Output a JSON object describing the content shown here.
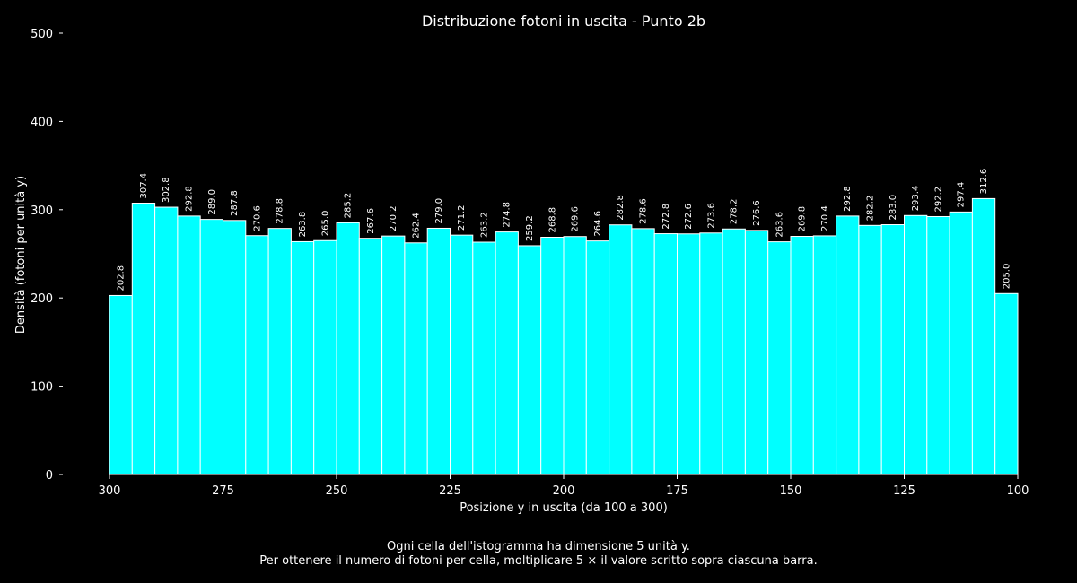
{
  "chart_data": {
    "type": "bar",
    "title": "Distribuzione fotoni in uscita - Punto 2b",
    "xlabel": "Posizione y in uscita (da 100 a 300)",
    "ylabel": "Densità (fotoni per unità y)",
    "xlim": [
      300,
      100
    ],
    "ylim": [
      0,
      500
    ],
    "x_ticks": [
      300,
      275,
      250,
      225,
      200,
      175,
      150,
      125,
      100
    ],
    "y_ticks": [
      0,
      100,
      200,
      300,
      400,
      500
    ],
    "bin_width": 5,
    "bin_left_edges": [
      300,
      295,
      290,
      285,
      280,
      275,
      270,
      265,
      260,
      255,
      250,
      245,
      240,
      235,
      230,
      225,
      220,
      215,
      210,
      205,
      200,
      195,
      190,
      185,
      180,
      175,
      170,
      165,
      160,
      155,
      150,
      145,
      140,
      135,
      130,
      125,
      120,
      115,
      110,
      105
    ],
    "values": [
      202.8,
      307.4,
      302.8,
      292.8,
      289.0,
      287.8,
      270.6,
      278.8,
      263.8,
      265.0,
      285.2,
      267.6,
      270.2,
      262.4,
      279.0,
      271.2,
      263.2,
      274.8,
      259.2,
      268.8,
      269.6,
      264.6,
      282.8,
      278.6,
      272.8,
      272.6,
      273.6,
      278.2,
      276.6,
      263.6,
      269.8,
      270.4,
      292.8,
      282.2,
      283.0,
      293.4,
      292.2,
      297.4,
      312.6,
      205.0
    ],
    "value_labels": [
      "202.8",
      "307.4",
      "302.8",
      "292.8",
      "289.0",
      "287.8",
      "270.6",
      "278.8",
      "263.8",
      "265.0",
      "285.2",
      "267.6",
      "270.2",
      "262.4",
      "279.0",
      "271.2",
      "263.2",
      "274.8",
      "259.2",
      "268.8",
      "269.6",
      "264.6",
      "282.8",
      "278.6",
      "272.8",
      "272.6",
      "273.6",
      "278.2",
      "276.6",
      "263.6",
      "269.8",
      "270.4",
      "292.8",
      "282.2",
      "283.0",
      "293.4",
      "292.2",
      "297.4",
      "312.6",
      "205.0"
    ],
    "bar_color": "#00ffff",
    "bar_edge_color": "#ffffff",
    "background": "#000000",
    "grid": false
  },
  "footnote": {
    "line1": "Ogni cella dell'istogramma ha dimensione 5 unità y.",
    "line2": "Per ottenere il numero di fotoni per cella, moltiplicare 5 × il valore scritto sopra ciascuna barra."
  }
}
